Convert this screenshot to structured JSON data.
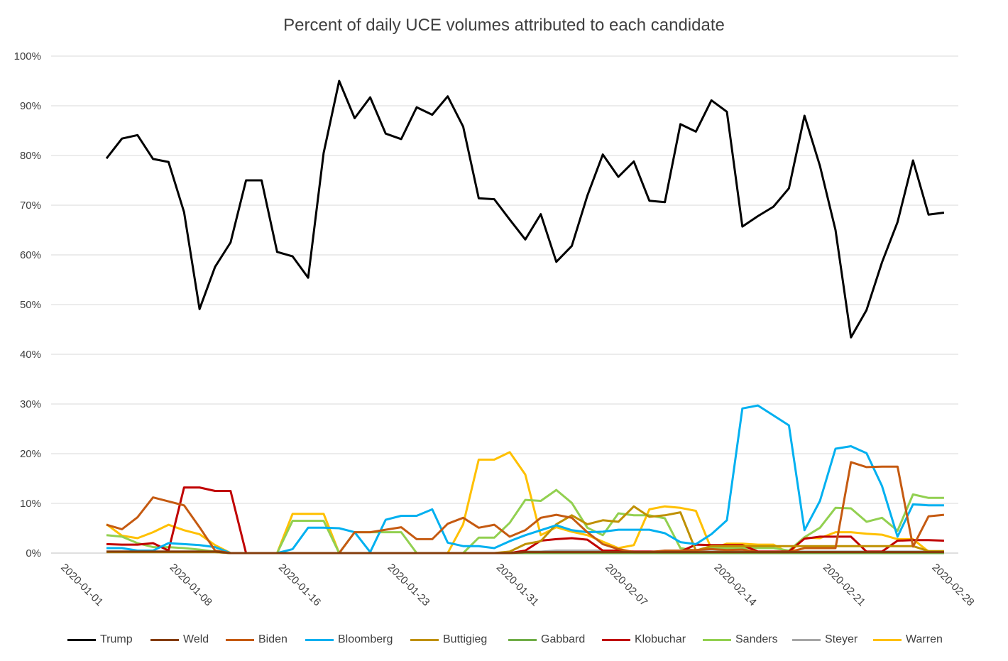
{
  "chart_data": {
    "type": "line",
    "title": "Percent of daily UCE volumes attributed to each candidate",
    "xlabel": "",
    "ylabel": "",
    "ylim": [
      0,
      100
    ],
    "y_ticks": [
      "0%",
      "10%",
      "20%",
      "30%",
      "40%",
      "50%",
      "60%",
      "70%",
      "80%",
      "90%",
      "100%"
    ],
    "x_ticks": [
      "2020-01-01",
      "2020-01-08",
      "2020-01-16",
      "2020-01-23",
      "2020-01-31",
      "2020-02-07",
      "2020-02-14",
      "2020-02-21",
      "2020-02-28"
    ],
    "grid": "horizontal",
    "legend_position": "bottom",
    "series": [
      {
        "name": "Trump",
        "color": "#000000",
        "values": [
          79.4,
          83.4,
          84.1,
          79.3,
          78.7,
          68.6,
          49.1,
          57.6,
          62.5,
          75.0,
          75.0,
          60.6,
          59.7,
          55.4,
          80.5,
          95.0,
          87.5,
          91.7,
          84.4,
          83.3,
          89.7,
          88.2,
          91.9,
          85.8,
          71.4,
          71.2,
          67.1,
          63.1,
          68.2,
          58.6,
          61.8,
          71.9,
          80.2,
          75.7,
          78.8,
          70.9,
          70.6,
          86.3,
          84.8,
          91.1,
          88.8,
          65.7,
          67.8,
          69.7,
          73.4,
          88.0,
          77.9,
          65.0,
          43.4,
          48.9,
          58.5,
          66.6,
          79.0,
          68.1,
          68.5
        ]
      },
      {
        "name": "Weld",
        "color": "#843c0c",
        "values": [
          0.3,
          0.3,
          0.3,
          0.3,
          0.3,
          0.3,
          0.3,
          0.3,
          0.0,
          0.0,
          0.0,
          0.0,
          0.0,
          0.0,
          0.0,
          0.0,
          0.0,
          0.0,
          0.0,
          0.0,
          0.0,
          0.0,
          0.0,
          0.0,
          0.0,
          0.0,
          0.0,
          0.2,
          0.2,
          0.2,
          0.2,
          0.2,
          0.2,
          0.2,
          0.2,
          0.2,
          0.2,
          0.2,
          0.2,
          0.2,
          0.2,
          0.2,
          0.2,
          0.2,
          0.2,
          0.2,
          0.2,
          0.2,
          0.2,
          0.2,
          0.2,
          0.2,
          0.2,
          0.2,
          0.2
        ]
      },
      {
        "name": "Biden",
        "color": "#c55a11",
        "values": [
          5.7,
          4.8,
          7.2,
          11.2,
          10.4,
          9.6,
          5.2,
          0.5,
          0.0,
          0.0,
          0.0,
          0.0,
          0.0,
          0.0,
          0.0,
          0.0,
          4.2,
          4.2,
          4.7,
          5.2,
          2.8,
          2.8,
          5.9,
          7.1,
          5.1,
          5.7,
          3.3,
          4.6,
          7.1,
          7.7,
          7.1,
          4.2,
          1.8,
          0.8,
          0.2,
          0.2,
          0.5,
          0.5,
          0.6,
          0.8,
          0.6,
          0.7,
          0.2,
          0.2,
          0.2,
          1.0,
          1.0,
          1.0,
          18.3,
          17.3,
          17.4,
          17.4,
          1.3,
          7.4,
          7.7
        ]
      },
      {
        "name": "Bloomberg",
        "color": "#00b0f0",
        "values": [
          1.0,
          1.0,
          0.5,
          0.5,
          2.0,
          1.8,
          1.6,
          1.2,
          0.0,
          0.0,
          0.0,
          0.0,
          0.8,
          5.1,
          5.1,
          5.0,
          4.2,
          0.2,
          6.7,
          7.5,
          7.5,
          8.8,
          2.1,
          1.4,
          1.4,
          1.0,
          2.4,
          3.6,
          4.6,
          5.6,
          4.6,
          4.2,
          4.3,
          4.7,
          4.7,
          4.7,
          4.0,
          2.2,
          1.8,
          3.8,
          6.6,
          29.1,
          29.7,
          27.7,
          25.7,
          4.6,
          10.5,
          21.0,
          21.5,
          20.1,
          13.5,
          3.3,
          9.8,
          9.6,
          9.6
        ]
      },
      {
        "name": "Buttigieg",
        "color": "#bf9000",
        "values": [
          0.2,
          0.2,
          0.2,
          0.2,
          0.2,
          0.2,
          0.2,
          0.2,
          0.0,
          0.0,
          0.0,
          0.0,
          0.0,
          0.0,
          0.0,
          0.0,
          0.0,
          0.0,
          0.0,
          0.0,
          0.0,
          0.0,
          0.0,
          0.0,
          0.0,
          0.0,
          0.3,
          1.8,
          2.4,
          5.8,
          7.6,
          5.8,
          6.6,
          6.3,
          9.4,
          7.3,
          7.6,
          8.2,
          0.5,
          1.4,
          1.4,
          1.4,
          1.4,
          1.4,
          1.4,
          1.4,
          1.4,
          1.4,
          1.4,
          1.4,
          1.4,
          1.4,
          1.4,
          0.4,
          0.4
        ]
      },
      {
        "name": "Gabbard",
        "color": "#70ad47",
        "values": [
          0.2,
          0.2,
          0.2,
          0.2,
          0.2,
          0.2,
          0.2,
          0.2,
          0.0,
          0.0,
          0.0,
          0.0,
          0.0,
          0.0,
          0.0,
          0.0,
          0.0,
          0.0,
          0.0,
          0.0,
          0.0,
          0.0,
          0.0,
          0.0,
          0.0,
          0.0,
          0.0,
          0.0,
          0.0,
          0.0,
          0.0,
          0.0,
          0.0,
          0.0,
          0.0,
          0.0,
          0.0,
          0.0,
          0.0,
          0.0,
          0.0,
          0.0,
          0.0,
          0.0,
          0.0,
          0.0,
          0.0,
          0.0,
          0.0,
          0.0,
          0.0,
          0.0,
          0.0,
          0.0,
          0.0
        ]
      },
      {
        "name": "Klobuchar",
        "color": "#c00000",
        "values": [
          1.8,
          1.7,
          1.7,
          2.0,
          0.5,
          13.2,
          13.2,
          12.5,
          12.5,
          0.0,
          0.0,
          0.0,
          0.0,
          0.0,
          0.0,
          0.0,
          0.0,
          0.0,
          0.0,
          0.0,
          0.0,
          0.0,
          0.0,
          0.0,
          0.0,
          0.0,
          0.0,
          0.5,
          2.5,
          2.8,
          3.0,
          2.7,
          0.5,
          0.5,
          0.3,
          0.3,
          0.3,
          0.3,
          1.7,
          1.6,
          1.6,
          1.6,
          0.3,
          0.3,
          0.3,
          2.9,
          3.3,
          3.3,
          3.3,
          0.3,
          0.3,
          2.5,
          2.6,
          2.6,
          2.5
        ]
      },
      {
        "name": "Sanders",
        "color": "#92d050",
        "values": [
          3.6,
          3.3,
          2.0,
          1.2,
          1.2,
          1.0,
          0.7,
          0.3,
          0.0,
          0.0,
          0.0,
          0.0,
          6.5,
          6.5,
          6.5,
          0.0,
          4.2,
          4.2,
          4.2,
          4.2,
          0.0,
          0.0,
          0.0,
          0.0,
          3.1,
          3.1,
          6.1,
          10.7,
          10.5,
          12.7,
          10.1,
          5.1,
          3.6,
          8.0,
          7.6,
          7.6,
          7.0,
          1.0,
          0.5,
          1.0,
          1.0,
          1.0,
          1.0,
          1.0,
          0.5,
          3.2,
          5.1,
          9.1,
          9.0,
          6.3,
          7.1,
          4.5,
          11.8,
          11.1,
          11.1
        ]
      },
      {
        "name": "Steyer",
        "color": "#a6a6a6",
        "values": [
          0.3,
          0.3,
          0.3,
          0.3,
          0.3,
          0.3,
          0.3,
          0.3,
          0.0,
          0.0,
          0.0,
          0.0,
          0.0,
          0.0,
          0.0,
          0.0,
          0.0,
          0.0,
          0.0,
          0.0,
          0.0,
          0.0,
          0.0,
          0.0,
          0.0,
          0.0,
          0.0,
          0.3,
          0.3,
          0.5,
          0.5,
          0.5,
          0.5,
          0.3,
          0.3,
          0.3,
          0.3,
          0.3,
          0.3,
          0.3,
          0.3,
          0.3,
          0.3,
          0.3,
          0.3,
          0.3,
          0.3,
          0.3,
          0.3,
          0.3,
          0.3,
          0.3,
          0.3,
          0.3,
          0.3
        ]
      },
      {
        "name": "Warren",
        "color": "#ffc000",
        "values": [
          5.8,
          3.5,
          3.0,
          4.2,
          5.7,
          4.6,
          3.8,
          1.6,
          0.0,
          0.0,
          0.0,
          0.0,
          7.9,
          7.9,
          7.9,
          0.0,
          0.0,
          0.0,
          0.0,
          0.0,
          0.0,
          0.0,
          0.0,
          5.8,
          18.8,
          18.8,
          20.3,
          15.8,
          3.6,
          5.2,
          4.3,
          3.6,
          2.3,
          1.0,
          1.6,
          8.8,
          9.4,
          9.1,
          8.5,
          0.8,
          1.9,
          1.9,
          1.7,
          1.7,
          0.0,
          3.1,
          3.0,
          4.2,
          4.2,
          3.9,
          3.7,
          2.8,
          2.8,
          0.3,
          0.3
        ]
      }
    ]
  }
}
